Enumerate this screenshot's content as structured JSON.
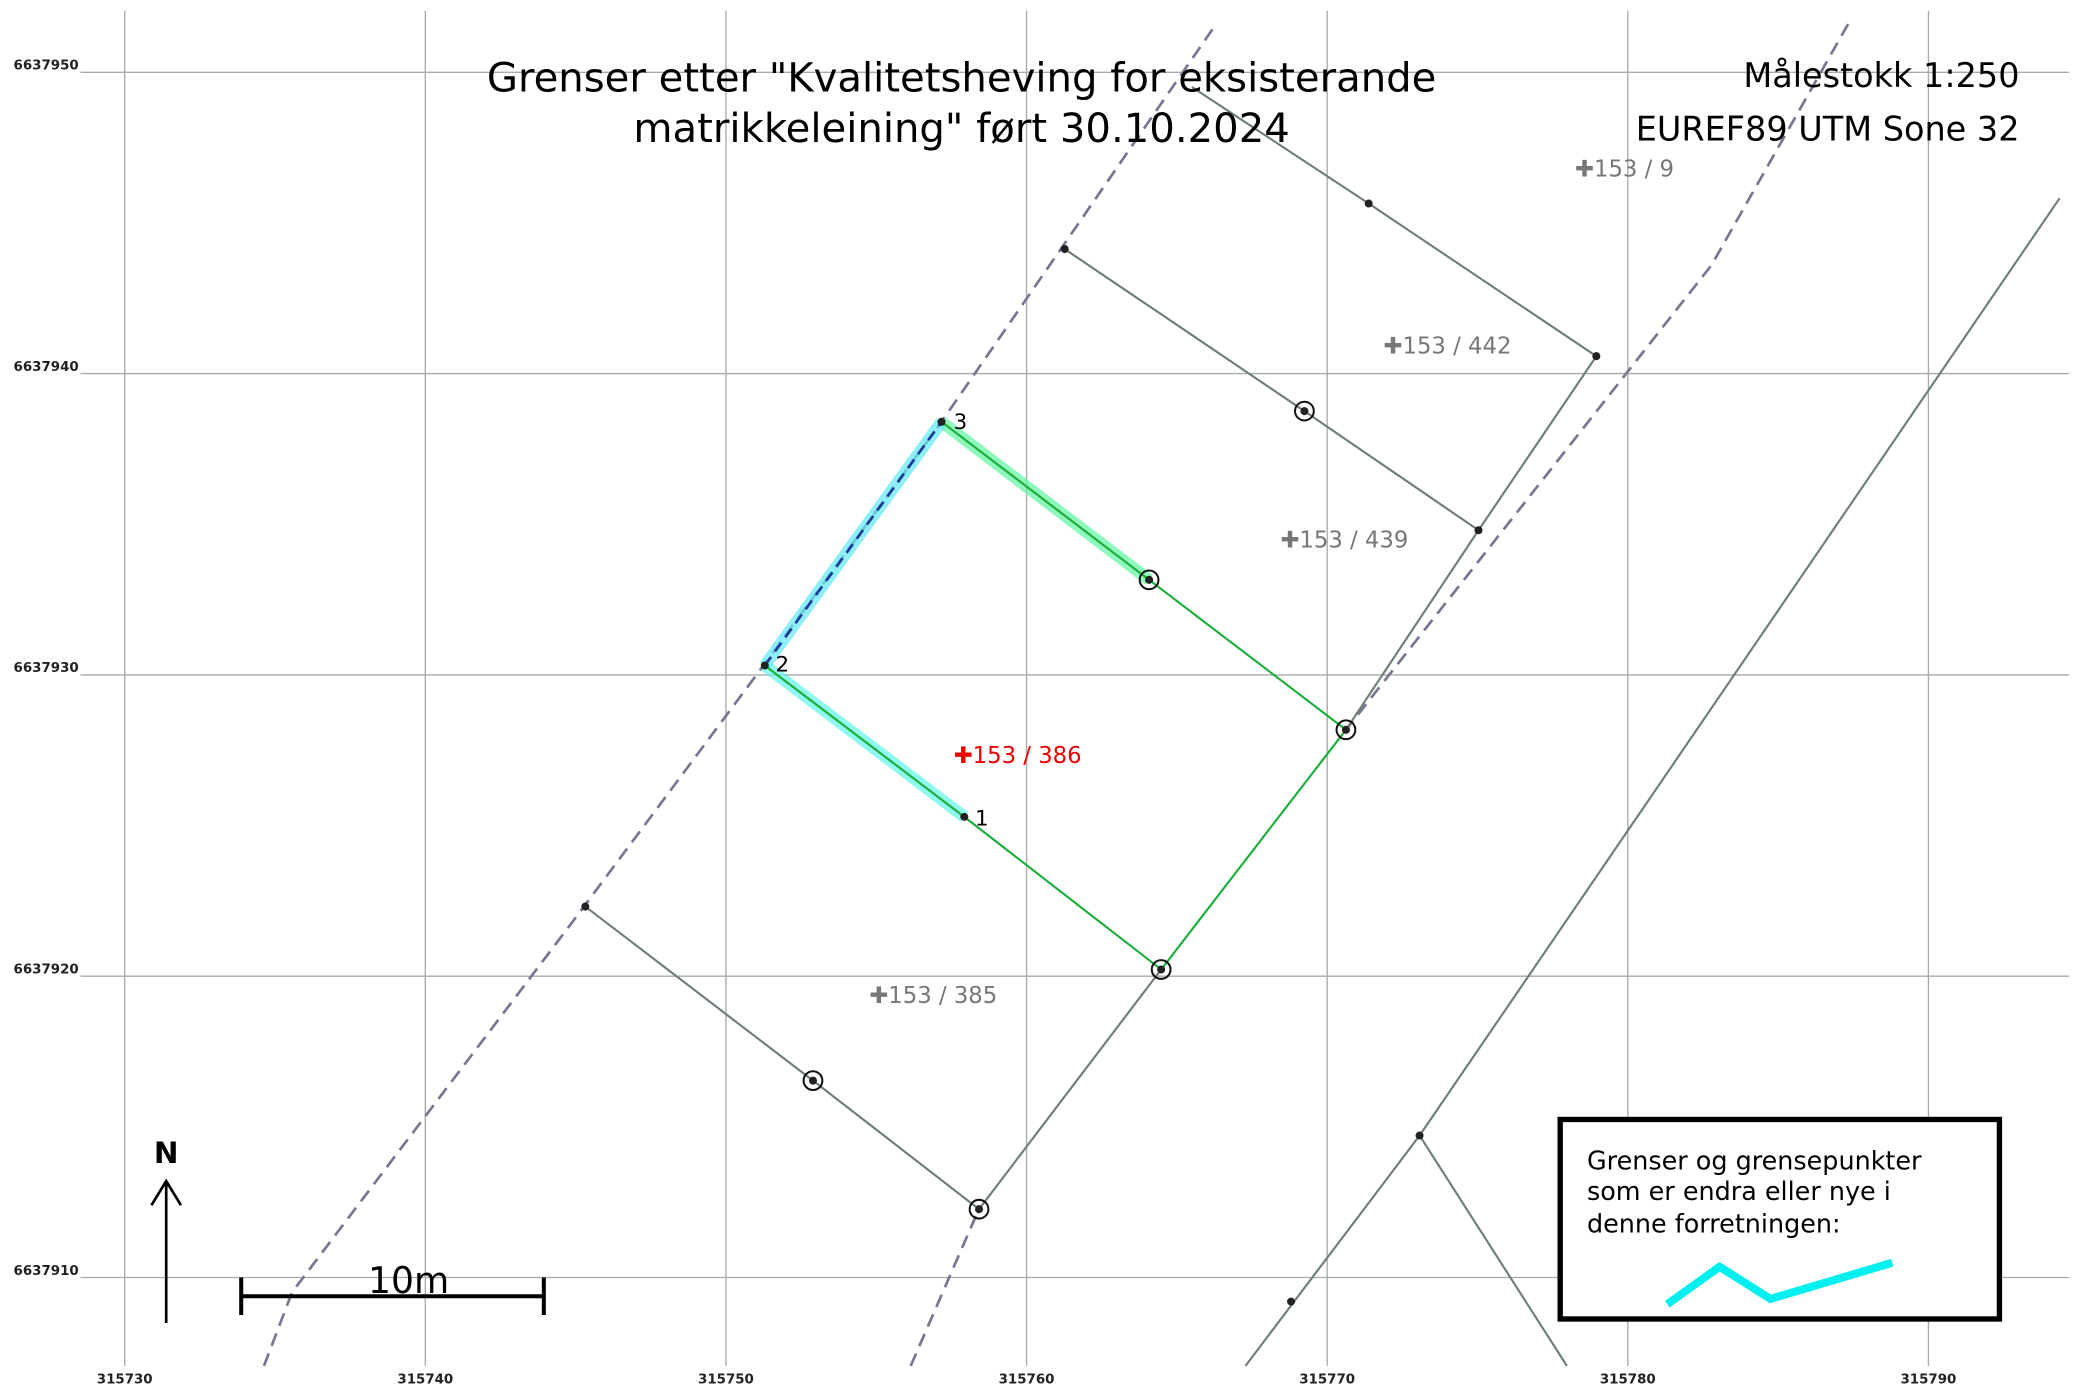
{
  "title": [
    "Grenser etter \"Kvalitetsheving for eksisterande",
    "matrikkeleining\" ført 30.10.2024"
  ],
  "scale": "Målestokk 1:250",
  "projection": "EUREF89 UTM Sone 32",
  "parcels": [
    "✚153 / 9",
    "✚153 / 442",
    "✚153 / 439",
    "✚153 / 386",
    "✚153 / 385"
  ],
  "points": [
    "3",
    "2",
    "1"
  ],
  "north": "N",
  "scale_bar": "10m",
  "legend": [
    "Grenser og grensepunkter",
    "som er endra eller nye i",
    "denne forretningen:"
  ],
  "xticks": [
    315730,
    315740,
    315750,
    315760,
    315770,
    315780,
    315790
  ],
  "yticks": [
    6637950,
    6637940,
    6637930,
    6637920,
    6637910
  ]
}
